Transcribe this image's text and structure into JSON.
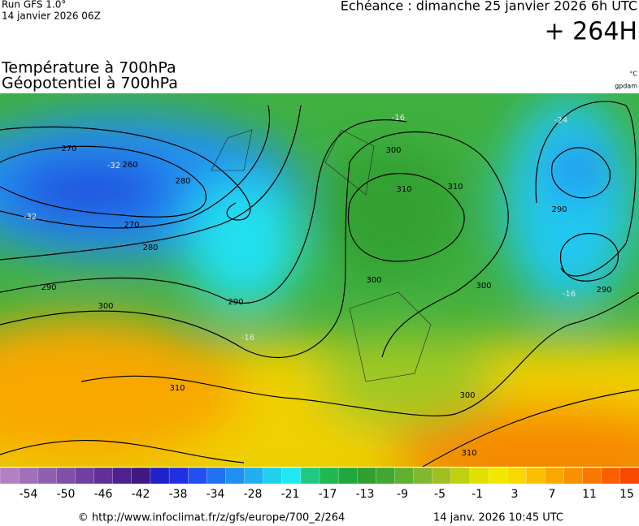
{
  "header": {
    "run": "Run GFS 1.0°",
    "run_date": "14 janvier 2026 06Z",
    "echeance": "Echéance : dimanche 25 janvier 2026 6h UTC",
    "lead": "+ 264H",
    "title_1": "Température à 700hPa",
    "title_2": "Géopotentiel à 700hPa",
    "unit_temp": "°C",
    "unit_geo": "gpdam"
  },
  "map": {
    "contour_labels": [
      "270",
      "260",
      "-32",
      "270",
      "280",
      "280",
      "310",
      "290",
      "300",
      "310",
      "-16",
      "290",
      "300",
      "-24",
      "290",
      "-16",
      "300",
      "300",
      "310",
      "-16",
      "-32",
      "290",
      "300",
      "310"
    ]
  },
  "colorbar": {
    "colors": [
      "#b080c0",
      "#a070b8",
      "#9060b0",
      "#8050a8",
      "#7040a0",
      "#603098",
      "#502090",
      "#401880",
      "#2020c8",
      "#2030e0",
      "#2050f0",
      "#2070f0",
      "#2090f0",
      "#20b0f0",
      "#20d0f0",
      "#20e8f0",
      "#20c880",
      "#20b850",
      "#20a840",
      "#30a030",
      "#40a830",
      "#60b030",
      "#80b830",
      "#a0c020",
      "#c0d010",
      "#e0e000",
      "#f0e800",
      "#f8d800",
      "#f8c000",
      "#f8a800",
      "#f89000",
      "#f87800",
      "#f86000",
      "#f84800"
    ],
    "labels": [
      -54,
      -50,
      -46,
      -42,
      -38,
      -34,
      -28,
      -21,
      -17,
      -13,
      -9,
      -5,
      -1,
      3,
      7,
      11,
      15
    ]
  },
  "footer": {
    "url": "© http://www.infoclimat.fr/z/gfs/europe/700_2/264",
    "timestamp": "14 janv. 2026 10:45 UTC"
  }
}
